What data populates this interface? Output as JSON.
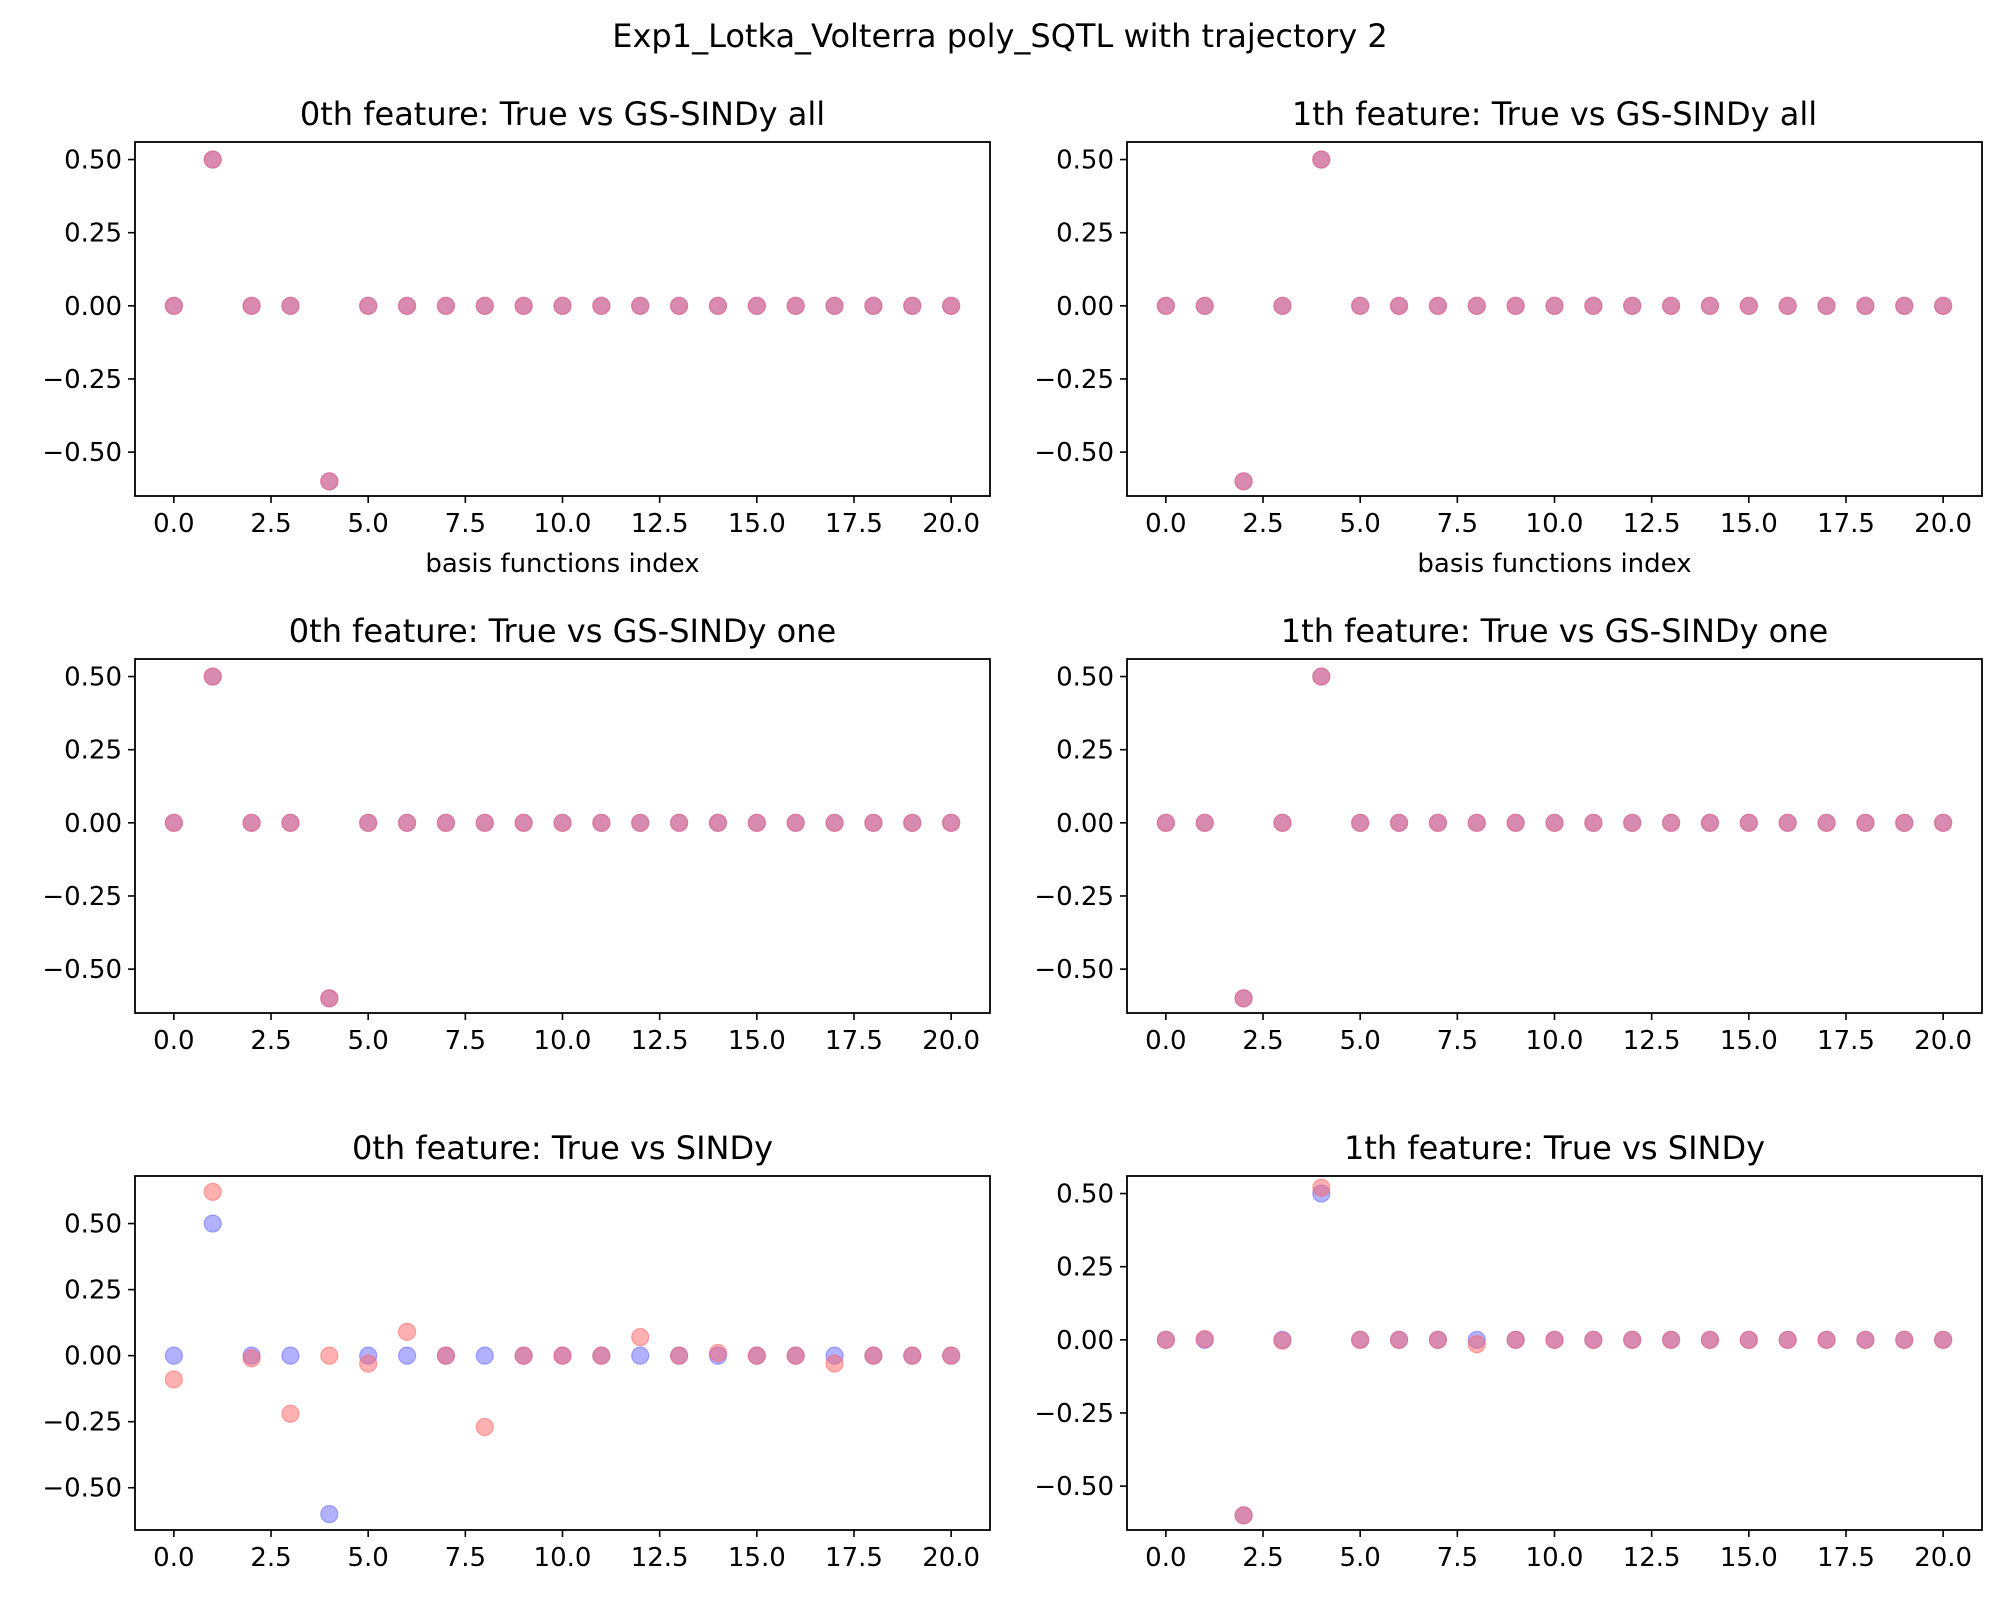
{
  "figure": {
    "suptitle": "Exp1_Lotka_Volterra poly_SQTL with trajectory 2",
    "colors": {
      "true": "#6464ff",
      "estimate": "#ff6464"
    }
  },
  "chart_data": [
    {
      "type": "scatter",
      "title": "0th feature: True vs GS-SINDy all",
      "xlabel": "basis functions index",
      "xlim": [
        -1,
        21
      ],
      "ylim": [
        -0.65,
        0.56
      ],
      "xticks": [
        "0.0",
        "2.5",
        "5.0",
        "7.5",
        "10.0",
        "12.5",
        "15.0",
        "17.5",
        "20.0"
      ],
      "yticks": [
        "−0.50",
        "−0.25",
        "0.00",
        "0.25",
        "0.50"
      ],
      "series": [
        {
          "x": [
            0,
            1,
            2,
            3,
            4,
            5,
            6,
            7,
            8,
            9,
            10,
            11,
            12,
            13,
            14,
            15,
            16,
            17,
            18,
            19,
            20
          ],
          "y": [
            0,
            0.5,
            0,
            0,
            -0.6,
            0,
            0,
            0,
            0,
            0,
            0,
            0,
            0,
            0,
            0,
            0,
            0,
            0,
            0,
            0,
            0
          ]
        },
        {
          "x": [
            0,
            1,
            2,
            3,
            4,
            5,
            6,
            7,
            8,
            9,
            10,
            11,
            12,
            13,
            14,
            15,
            16,
            17,
            18,
            19,
            20
          ],
          "y": [
            0,
            0.5,
            0,
            0,
            -0.6,
            0,
            0,
            0,
            0,
            0,
            0,
            0,
            0,
            0,
            0,
            0,
            0,
            0,
            0,
            0,
            0
          ]
        }
      ]
    },
    {
      "type": "scatter",
      "title": "1th feature: True vs GS-SINDy all",
      "xlabel": "basis functions index",
      "xlim": [
        -1,
        21
      ],
      "ylim": [
        -0.65,
        0.56
      ],
      "xticks": [
        "0.0",
        "2.5",
        "5.0",
        "7.5",
        "10.0",
        "12.5",
        "15.0",
        "17.5",
        "20.0"
      ],
      "yticks": [
        "−0.50",
        "−0.25",
        "0.00",
        "0.25",
        "0.50"
      ],
      "series": [
        {
          "x": [
            0,
            1,
            2,
            3,
            4,
            5,
            6,
            7,
            8,
            9,
            10,
            11,
            12,
            13,
            14,
            15,
            16,
            17,
            18,
            19,
            20
          ],
          "y": [
            0,
            0,
            -0.6,
            0,
            0.5,
            0,
            0,
            0,
            0,
            0,
            0,
            0,
            0,
            0,
            0,
            0,
            0,
            0,
            0,
            0,
            0
          ]
        },
        {
          "x": [
            0,
            1,
            2,
            3,
            4,
            5,
            6,
            7,
            8,
            9,
            10,
            11,
            12,
            13,
            14,
            15,
            16,
            17,
            18,
            19,
            20
          ],
          "y": [
            0,
            0,
            -0.6,
            0,
            0.5,
            0,
            0,
            0,
            0,
            0,
            0,
            0,
            0,
            0,
            0,
            0,
            0,
            0,
            0,
            0,
            0
          ]
        }
      ]
    },
    {
      "type": "scatter",
      "title": "0th feature: True vs GS-SINDy one",
      "xlabel": "",
      "xlim": [
        -1,
        21
      ],
      "ylim": [
        -0.65,
        0.56
      ],
      "xticks": [
        "0.0",
        "2.5",
        "5.0",
        "7.5",
        "10.0",
        "12.5",
        "15.0",
        "17.5",
        "20.0"
      ],
      "yticks": [
        "−0.50",
        "−0.25",
        "0.00",
        "0.25",
        "0.50"
      ],
      "series": [
        {
          "x": [
            0,
            1,
            2,
            3,
            4,
            5,
            6,
            7,
            8,
            9,
            10,
            11,
            12,
            13,
            14,
            15,
            16,
            17,
            18,
            19,
            20
          ],
          "y": [
            0,
            0.5,
            0,
            0,
            -0.6,
            0,
            0,
            0,
            0,
            0,
            0,
            0,
            0,
            0,
            0,
            0,
            0,
            0,
            0,
            0,
            0
          ]
        },
        {
          "x": [
            0,
            1,
            2,
            3,
            4,
            5,
            6,
            7,
            8,
            9,
            10,
            11,
            12,
            13,
            14,
            15,
            16,
            17,
            18,
            19,
            20
          ],
          "y": [
            0,
            0.5,
            0,
            0,
            -0.6,
            0,
            0,
            0,
            0,
            0,
            0,
            0,
            0,
            0,
            0,
            0,
            0,
            0,
            0,
            0,
            0
          ]
        }
      ]
    },
    {
      "type": "scatter",
      "title": "1th feature: True vs GS-SINDy one",
      "xlabel": "",
      "xlim": [
        -1,
        21
      ],
      "ylim": [
        -0.65,
        0.56
      ],
      "xticks": [
        "0.0",
        "2.5",
        "5.0",
        "7.5",
        "10.0",
        "12.5",
        "15.0",
        "17.5",
        "20.0"
      ],
      "yticks": [
        "−0.50",
        "−0.25",
        "0.00",
        "0.25",
        "0.50"
      ],
      "series": [
        {
          "x": [
            0,
            1,
            2,
            3,
            4,
            5,
            6,
            7,
            8,
            9,
            10,
            11,
            12,
            13,
            14,
            15,
            16,
            17,
            18,
            19,
            20
          ],
          "y": [
            0,
            0,
            -0.6,
            0,
            0.5,
            0,
            0,
            0,
            0,
            0,
            0,
            0,
            0,
            0,
            0,
            0,
            0,
            0,
            0,
            0,
            0
          ]
        },
        {
          "x": [
            0,
            1,
            2,
            3,
            4,
            5,
            6,
            7,
            8,
            9,
            10,
            11,
            12,
            13,
            14,
            15,
            16,
            17,
            18,
            19,
            20
          ],
          "y": [
            0,
            0,
            -0.6,
            0,
            0.5,
            0,
            0,
            0,
            0,
            0,
            0,
            0,
            0,
            0,
            0,
            0,
            0,
            0,
            0,
            0,
            0
          ]
        }
      ]
    },
    {
      "type": "scatter",
      "title": "0th feature: True vs SINDy",
      "xlabel": "",
      "xlim": [
        -1,
        21
      ],
      "ylim": [
        -0.66,
        0.68
      ],
      "xticks": [
        "0.0",
        "2.5",
        "5.0",
        "7.5",
        "10.0",
        "12.5",
        "15.0",
        "17.5",
        "20.0"
      ],
      "yticks": [
        "−0.50",
        "−0.25",
        "0.00",
        "0.25",
        "0.50"
      ],
      "series": [
        {
          "x": [
            0,
            1,
            2,
            3,
            4,
            5,
            6,
            7,
            8,
            9,
            10,
            11,
            12,
            13,
            14,
            15,
            16,
            17,
            18,
            19,
            20
          ],
          "y": [
            0,
            0.5,
            0,
            0,
            -0.6,
            0,
            0,
            0,
            0,
            0,
            0,
            0,
            0,
            0,
            0,
            0,
            0,
            0,
            0,
            0,
            0
          ]
        },
        {
          "x": [
            0,
            1,
            2,
            3,
            4,
            5,
            6,
            7,
            8,
            9,
            10,
            11,
            12,
            13,
            14,
            15,
            16,
            17,
            18,
            19,
            20
          ],
          "y": [
            -0.09,
            0.62,
            -0.01,
            -0.22,
            0,
            -0.03,
            0.09,
            0,
            -0.27,
            0,
            0,
            0,
            0.07,
            0,
            0.01,
            0,
            0,
            -0.03,
            0,
            0,
            0
          ]
        }
      ]
    },
    {
      "type": "scatter",
      "title": "1th feature: True vs SINDy",
      "xlabel": "",
      "xlim": [
        -1,
        21
      ],
      "ylim": [
        -0.65,
        0.56
      ],
      "xticks": [
        "0.0",
        "2.5",
        "5.0",
        "7.5",
        "10.0",
        "12.5",
        "15.0",
        "17.5",
        "20.0"
      ],
      "yticks": [
        "−0.50",
        "−0.25",
        "0.00",
        "0.25",
        "0.50"
      ],
      "series": [
        {
          "x": [
            0,
            1,
            2,
            3,
            4,
            5,
            6,
            7,
            8,
            9,
            10,
            11,
            12,
            13,
            14,
            15,
            16,
            17,
            18,
            19,
            20
          ],
          "y": [
            0,
            0,
            -0.6,
            0,
            0.5,
            0,
            0,
            0,
            0,
            0,
            0,
            0,
            0,
            0,
            0,
            0,
            0,
            0,
            0,
            0,
            0
          ]
        },
        {
          "x": [
            0,
            1,
            2,
            3,
            4,
            5,
            6,
            7,
            8,
            9,
            10,
            11,
            12,
            13,
            14,
            15,
            16,
            17,
            18,
            19,
            20
          ],
          "y": [
            0,
            0.003,
            -0.6,
            -0.003,
            0.52,
            0,
            0,
            0,
            -0.015,
            0,
            0,
            0,
            0,
            0,
            0,
            0,
            0,
            0,
            0,
            0,
            0
          ]
        }
      ]
    }
  ]
}
